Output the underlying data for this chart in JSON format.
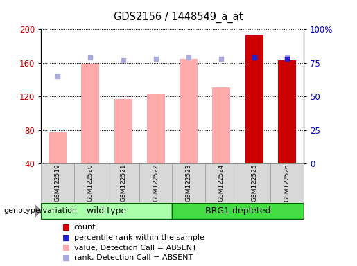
{
  "title": "GDS2156 / 1448549_a_at",
  "samples": [
    "GSM122519",
    "GSM122520",
    "GSM122521",
    "GSM122522",
    "GSM122523",
    "GSM122524",
    "GSM122525",
    "GSM122526"
  ],
  "pink_bar_values": [
    77,
    159,
    117,
    123,
    165,
    131,
    0,
    163
  ],
  "blue_dot_pct": [
    65,
    79,
    77,
    78,
    79,
    78,
    0,
    79
  ],
  "red_bar_values": [
    0,
    0,
    0,
    0,
    0,
    0,
    193,
    163
  ],
  "blue_square_pct": [
    0,
    0,
    0,
    0,
    0,
    0,
    79,
    78
  ],
  "ylim_left": [
    40,
    200
  ],
  "ylim_right": [
    0,
    100
  ],
  "yticks_left": [
    40,
    80,
    120,
    160,
    200
  ],
  "yticks_right": [
    0,
    25,
    50,
    75,
    100
  ],
  "yticklabels_right": [
    "0",
    "25",
    "50",
    "75",
    "100%"
  ],
  "group_labels": [
    "wild type",
    "BRG1 depleted"
  ],
  "group_splits": [
    4
  ],
  "group_colors": [
    "#aaffaa",
    "#44dd44"
  ],
  "genotype_label": "genotype/variation",
  "legend_labels": [
    "count",
    "percentile rank within the sample",
    "value, Detection Call = ABSENT",
    "rank, Detection Call = ABSENT"
  ],
  "legend_colors": [
    "#cc0000",
    "#2222cc",
    "#ffaaaa",
    "#aaaadd"
  ],
  "pink_color": "#ffaaaa",
  "red_color": "#cc0000",
  "blue_sq_color": "#2222cc",
  "blue_dot_color": "#aaaadd",
  "bar_width": 0.55,
  "axis_color_left": "#cc0000",
  "axis_color_right": "#0000cc"
}
